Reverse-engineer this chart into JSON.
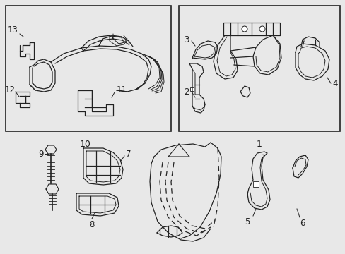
{
  "bg_color": "#e8e8e8",
  "box_bg": "#e8e8e8",
  "box_edge": "#222222",
  "line_color": "#222222",
  "label_color": "#111111",
  "lw": 0.9,
  "fig_w": 4.89,
  "fig_h": 3.6,
  "dpi": 100
}
